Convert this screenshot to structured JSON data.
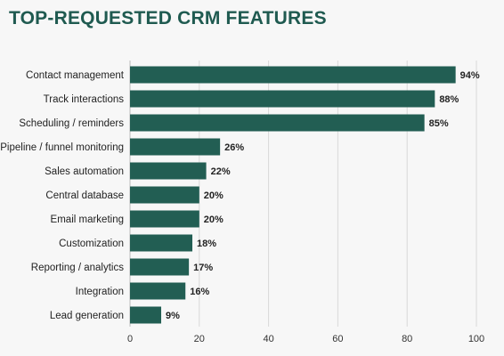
{
  "chart_data": {
    "type": "bar",
    "orientation": "horizontal",
    "title": "TOP-REQUESTED CRM FEATURES",
    "categories": [
      "Contact management",
      "Track interactions",
      "Scheduling / reminders",
      "Pipeline / funnel monitoring",
      "Sales automation",
      "Central database",
      "Email marketing",
      "Customization",
      "Reporting / analytics",
      "Integration",
      "Lead generation"
    ],
    "values": [
      94,
      88,
      85,
      26,
      22,
      20,
      20,
      18,
      17,
      16,
      9
    ],
    "value_labels": [
      "94%",
      "88%",
      "85%",
      "26%",
      "22%",
      "20%",
      "20%",
      "18%",
      "17%",
      "16%",
      "9%"
    ],
    "xlim": [
      0,
      100
    ],
    "xticks": [
      "0",
      "20",
      "40",
      "60",
      "80",
      "100"
    ],
    "xlabel": "",
    "ylabel": "",
    "grid": "vertical",
    "legend": "none",
    "colors": {
      "bar": "#225e53",
      "title": "#1f5a50",
      "grid": "#d8d8d8"
    }
  }
}
